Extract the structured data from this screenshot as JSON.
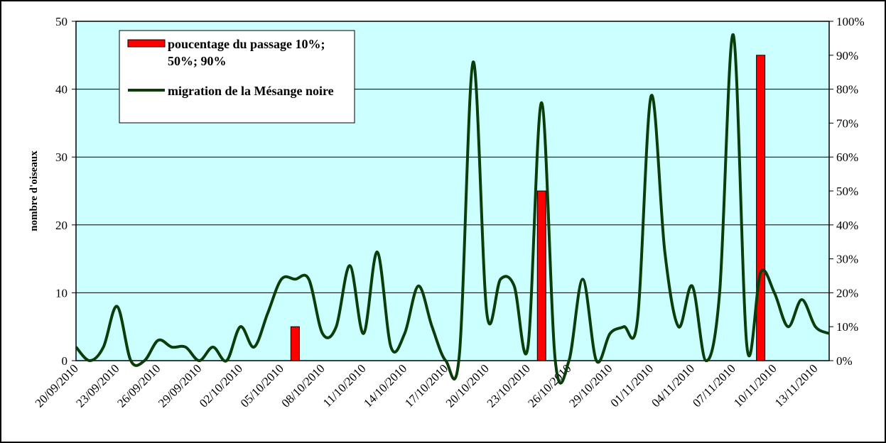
{
  "chart_data": {
    "type": "bar-line",
    "y_label": "nombre d'oiseaux",
    "categories": [
      "20/09/2010",
      null,
      null,
      "23/09/2010",
      null,
      null,
      "26/09/2010",
      null,
      null,
      "29/09/2010",
      null,
      null,
      "02/10/2010",
      null,
      null,
      "05/10/2010",
      null,
      null,
      "08/10/2010",
      null,
      null,
      "11/10/2010",
      null,
      null,
      "14/10/2010",
      null,
      null,
      "17/10/2010",
      null,
      null,
      "20/10/2010",
      null,
      null,
      "23/10/2010",
      null,
      null,
      "26/10/2010",
      null,
      null,
      "29/10/2010",
      null,
      null,
      "01/11/2010",
      null,
      null,
      "04/11/2010",
      null,
      null,
      "07/11/2010",
      null,
      null,
      "10/11/2010",
      null,
      null,
      "13/11/2010",
      null
    ],
    "series": [
      {
        "name": "poucentage du passage 10%; 50%; 90%",
        "type": "bar",
        "axis": "y2",
        "color": "#ff0000",
        "values": [
          null,
          null,
          null,
          null,
          null,
          null,
          null,
          null,
          null,
          null,
          null,
          null,
          null,
          null,
          null,
          null,
          10,
          null,
          null,
          null,
          null,
          null,
          null,
          null,
          null,
          null,
          null,
          null,
          null,
          null,
          null,
          null,
          null,
          null,
          50,
          null,
          null,
          null,
          null,
          null,
          null,
          null,
          null,
          null,
          null,
          null,
          null,
          null,
          null,
          null,
          90,
          null,
          null,
          null,
          null,
          null
        ]
      },
      {
        "name": "migration de la Mésange noire",
        "type": "line",
        "color": "#0b3d0b",
        "values": [
          2,
          0,
          2,
          8,
          0,
          0,
          3,
          2,
          2,
          0,
          2,
          0,
          5,
          2,
          7,
          12,
          12,
          12,
          4,
          5,
          14,
          4,
          16,
          2,
          4,
          11,
          5,
          0,
          1,
          44,
          7,
          12,
          11,
          2,
          38,
          0,
          0,
          12,
          0,
          4,
          5,
          6,
          39,
          16,
          5,
          11,
          0,
          10,
          48,
          2,
          13,
          10,
          5,
          9,
          5,
          4
        ]
      }
    ],
    "ylim": [
      0,
      50
    ],
    "yticks": [
      0,
      10,
      20,
      30,
      40,
      50
    ],
    "y2lim": [
      0,
      100
    ],
    "y2ticks": [
      {
        "value": 0,
        "label": "0%"
      },
      {
        "value": 10,
        "label": "10%"
      },
      {
        "value": 20,
        "label": "20%"
      },
      {
        "value": 30,
        "label": "30%"
      },
      {
        "value": 40,
        "label": "40%"
      },
      {
        "value": 50,
        "label": "50%"
      },
      {
        "value": 60,
        "label": "60%"
      },
      {
        "value": 70,
        "label": "70%"
      },
      {
        "value": 80,
        "label": "80%"
      },
      {
        "value": 90,
        "label": "90%"
      },
      {
        "value": 100,
        "label": "100%"
      }
    ],
    "grid": true,
    "legend": "top-left",
    "plot_background": "#ccffff"
  }
}
